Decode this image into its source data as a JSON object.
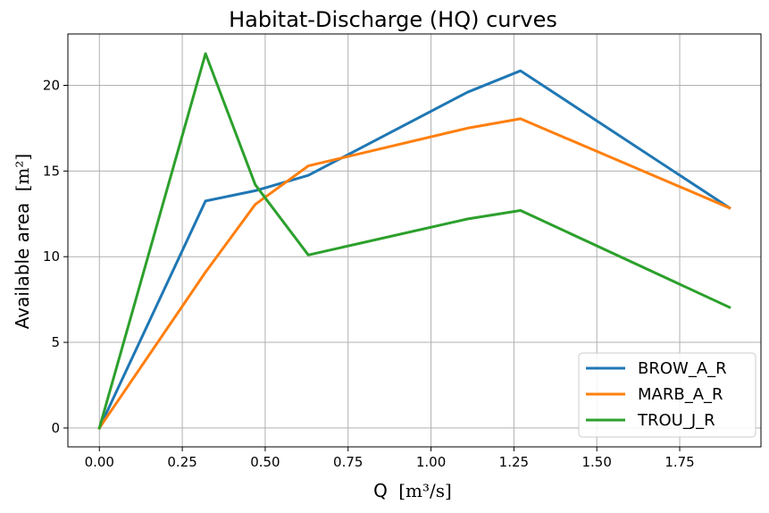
{
  "chart_data": {
    "type": "line",
    "title": "Habitat-Discharge (HQ) curves",
    "xlabel_text": "Q",
    "xlabel_unit": "[m³/s]",
    "ylabel_text": "Available area",
    "ylabel_unit": "[m²]",
    "xlim": [
      -0.095,
      1.995
    ],
    "ylim": [
      -1.1,
      23.0
    ],
    "xticks": [
      0.0,
      0.25,
      0.5,
      0.75,
      1.0,
      1.25,
      1.5,
      1.75
    ],
    "xtick_labels": [
      "0.00",
      "0.25",
      "0.50",
      "0.75",
      "1.00",
      "1.25",
      "1.50",
      "1.75"
    ],
    "yticks": [
      0,
      5,
      10,
      15,
      20
    ],
    "ytick_labels": [
      "0",
      "5",
      "10",
      "15",
      "20"
    ],
    "grid": true,
    "legend_position": "bottom-right",
    "series": [
      {
        "name": "BROW_A_R",
        "color": "#1f77b4",
        "x": [
          0.0,
          0.32,
          0.47,
          0.63,
          1.11,
          1.27,
          1.9
        ],
        "y": [
          0.0,
          13.25,
          13.85,
          14.75,
          19.6,
          20.85,
          12.85
        ]
      },
      {
        "name": "MARB_A_R",
        "color": "#ff7f0e",
        "x": [
          0.0,
          0.32,
          0.47,
          0.63,
          1.11,
          1.27,
          1.9
        ],
        "y": [
          0.0,
          9.1,
          13.05,
          15.3,
          17.5,
          18.05,
          12.85
        ]
      },
      {
        "name": "TROU_J_R",
        "color": "#2ca02c",
        "x": [
          0.0,
          0.32,
          0.47,
          0.63,
          1.11,
          1.27,
          1.9
        ],
        "y": [
          0.0,
          21.85,
          14.2,
          10.1,
          12.2,
          12.7,
          7.05
        ]
      }
    ]
  }
}
